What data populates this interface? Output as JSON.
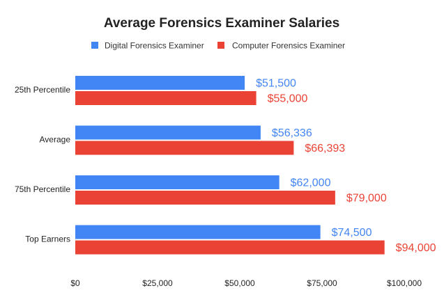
{
  "chart_data": {
    "type": "bar",
    "orientation": "horizontal",
    "title": "Average Forensics Examiner Salaries",
    "categories": [
      "25th Percentile",
      "Average",
      "75th Percentile",
      "Top Earners"
    ],
    "series": [
      {
        "name": "Digital Forensics Examiner",
        "color": "#4285f4",
        "values": [
          51500,
          56336,
          62000,
          74500
        ],
        "labels": [
          "$51,500",
          "$56,336",
          "$62,000",
          "$74,500"
        ]
      },
      {
        "name": "Computer Forensics Examiner",
        "color": "#ea4335",
        "values": [
          55000,
          66393,
          79000,
          94000
        ],
        "labels": [
          "$55,000",
          "$66,393",
          "$79,000",
          "$94,000"
        ]
      }
    ],
    "xlim": [
      0,
      100000
    ],
    "x_ticks": [
      0,
      25000,
      50000,
      75000,
      100000
    ],
    "x_tick_labels": [
      "$0",
      "$25,000",
      "$50,000",
      "$75,000",
      "$100,000"
    ],
    "legend_position": "top",
    "grid": false
  }
}
